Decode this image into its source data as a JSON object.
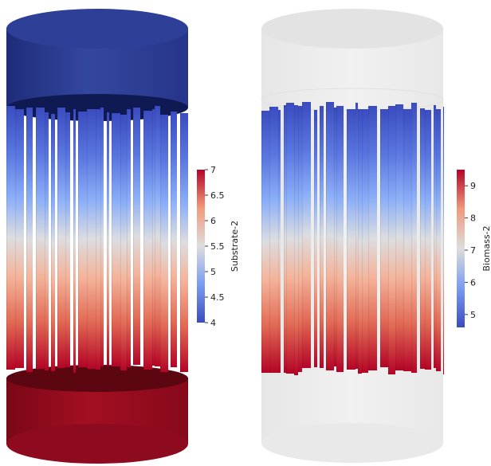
{
  "panels": [
    {
      "id": "substrate",
      "colorbar": {
        "title": "Substrate-2",
        "ticks": [
          "7",
          "6.5",
          "6",
          "5.5",
          "5",
          "4.5",
          "4"
        ],
        "range": [
          4,
          7
        ]
      },
      "colors": {
        "top_cap": "#2a3996",
        "bottom_cap": "#960c20",
        "high": "#b40426",
        "mid": "#dddddd",
        "low": "#3b4cc0"
      }
    },
    {
      "id": "biomass",
      "colorbar": {
        "title": "Biomass-2",
        "ticks": [
          "9",
          "8",
          "7",
          "6",
          "5"
        ],
        "range": [
          4.6,
          9.5
        ]
      },
      "colors": {
        "shell": "#ececec",
        "high": "#b40426",
        "mid": "#dddddd",
        "low": "#3b4cc0"
      }
    }
  ]
}
